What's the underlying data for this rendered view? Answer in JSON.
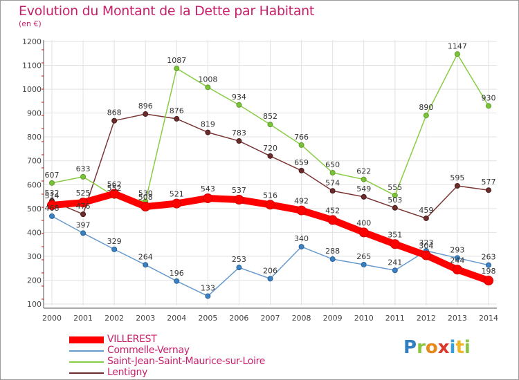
{
  "chart_data": {
    "type": "line",
    "title": "Evolution du Montant de la Dette par Habitant",
    "subtitle": "(en €)",
    "x": [
      "2000",
      "2001",
      "2002",
      "2003",
      "2004",
      "2005",
      "2006",
      "2007",
      "2008",
      "2009",
      "2010",
      "2011",
      "2012",
      "2013",
      "2014"
    ],
    "ylim": [
      100,
      1200
    ],
    "yticks": [
      100,
      200,
      300,
      400,
      500,
      600,
      700,
      800,
      900,
      1000,
      1100,
      1200
    ],
    "grid": true,
    "legend_position": "bottom-left",
    "series": [
      {
        "name": "VILLEREST",
        "color": "#ff0000",
        "values": [
          514,
          525,
          562,
          508,
          521,
          543,
          537,
          516,
          492,
          452,
          400,
          351,
          304,
          244,
          198
        ]
      },
      {
        "name": "Commelle-Vernay",
        "color": "#6699cc",
        "values": [
          468,
          397,
          329,
          264,
          196,
          133,
          253,
          206,
          340,
          288,
          265,
          241,
          323,
          293,
          263
        ]
      },
      {
        "name": "Saint-Jean-Saint-Maurice-sur-Loire",
        "color": "#88cc44",
        "values": [
          607,
          633,
          552,
          530,
          1087,
          1008,
          934,
          852,
          766,
          650,
          622,
          555,
          890,
          1147,
          930
        ]
      },
      {
        "name": "Lentigny",
        "color": "#6b2c2c",
        "values": [
          532,
          476,
          868,
          896,
          876,
          819,
          783,
          720,
          659,
          574,
          549,
          503,
          459,
          595,
          577
        ]
      }
    ]
  },
  "brand": {
    "logo_letters": [
      "P",
      "r",
      "o",
      "x",
      "i",
      "t",
      "i"
    ]
  }
}
